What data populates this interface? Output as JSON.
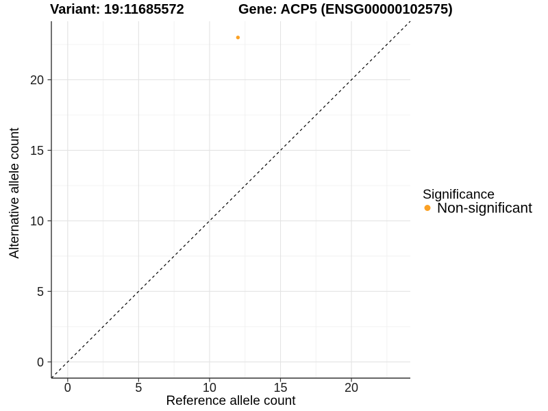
{
  "title": {
    "variant": "Variant: 19:11685572",
    "gene": "Gene: ACP5 (ENSG00000102575)"
  },
  "chart_data": {
    "type": "scatter",
    "title_left": "Variant: 19:11685572",
    "title_right": "Gene: ACP5 (ENSG00000102575)",
    "xlabel": "Reference allele count",
    "ylabel": "Alternative allele count",
    "xlim": [
      -1.15,
      24.15
    ],
    "ylim": [
      -1.15,
      24.15
    ],
    "xticks": [
      0,
      5,
      10,
      15,
      20
    ],
    "yticks": [
      0,
      5,
      10,
      15,
      20
    ],
    "xminor": [
      2.5,
      7.5,
      12.5,
      17.5,
      22.5
    ],
    "yminor": [
      2.5,
      7.5,
      12.5,
      17.5,
      22.5
    ],
    "grid": "major+minor",
    "legend_position": "right",
    "series": [
      {
        "name": "Non-significant",
        "color": "#FBA125",
        "points": [
          {
            "x": 12,
            "y": 23
          }
        ]
      }
    ],
    "reference_line": {
      "slope": 1,
      "intercept": 0,
      "style": "dashed",
      "color": "#000000"
    }
  },
  "legend": {
    "title": "Significance",
    "items": [
      {
        "label": "Non-significant",
        "color": "#FBA125"
      }
    ]
  },
  "colors": {
    "background": "#FFFFFF",
    "grid_major": "#E3E3E3",
    "grid_minor": "#F0F0F0",
    "axis_line": "#333333",
    "tick_mark": "#333333",
    "dashed_line": "#000000",
    "point": "#FBA125"
  }
}
